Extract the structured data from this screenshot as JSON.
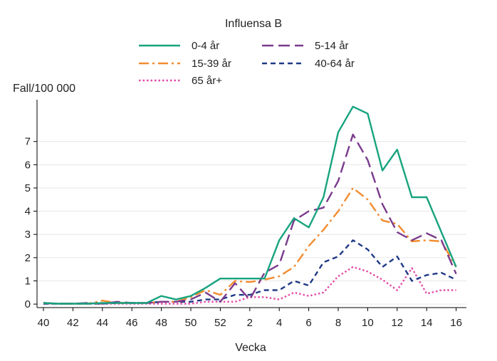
{
  "chart_data": {
    "type": "line",
    "title": "Influensa B",
    "ylabel": "Fall/100 000",
    "xlabel": "Vecka",
    "ylim": [
      -0.15,
      8.8
    ],
    "yticks": [
      0,
      1,
      2,
      3,
      4,
      5,
      6,
      7
    ],
    "xtick_labels": [
      "40",
      "42",
      "44",
      "46",
      "48",
      "50",
      "52",
      "2",
      "4",
      "6",
      "8",
      "10",
      "12",
      "14",
      "16"
    ],
    "x": [
      "40",
      "41",
      "42",
      "43",
      "44",
      "45",
      "46",
      "47",
      "48",
      "49",
      "50",
      "51",
      "52",
      "1",
      "2",
      "3",
      "4",
      "5",
      "6",
      "7",
      "8",
      "9",
      "10",
      "11",
      "12",
      "13",
      "14",
      "15",
      "16"
    ],
    "grid": true,
    "legend_position": "top",
    "series": [
      {
        "name": "0-4 år",
        "color": "#17a37e",
        "dash": "solid",
        "values": [
          0.05,
          0.02,
          0.02,
          0.02,
          0.05,
          0.05,
          0.05,
          0.05,
          0.35,
          0.2,
          0.35,
          0.7,
          1.1,
          1.1,
          1.1,
          1.1,
          2.75,
          3.7,
          3.3,
          4.6,
          7.4,
          8.5,
          8.2,
          5.75,
          6.65,
          4.6,
          4.6,
          3.1,
          1.6
        ]
      },
      {
        "name": "5-14 år",
        "color": "#7a3a8c",
        "dash": "longdash",
        "values": [
          0.05,
          0.02,
          0.02,
          0.05,
          0.02,
          0.1,
          0.05,
          0.05,
          0.1,
          0.1,
          0.2,
          0.5,
          0.1,
          0.9,
          0.2,
          1.35,
          1.7,
          3.6,
          4.0,
          4.15,
          5.3,
          7.3,
          6.2,
          4.3,
          3.1,
          2.75,
          3.05,
          2.75,
          1.3
        ]
      },
      {
        "name": "15-39 år",
        "color": "#f28c30",
        "dash": "dashdot",
        "values": [
          0.05,
          0.02,
          0.02,
          0.02,
          0.15,
          0.05,
          0.05,
          0.05,
          0.1,
          0.1,
          0.3,
          0.6,
          0.4,
          1.0,
          0.95,
          1.05,
          1.2,
          1.6,
          2.5,
          3.2,
          4.0,
          5.0,
          4.5,
          3.6,
          3.45,
          2.7,
          2.75,
          2.7,
          1.6
        ]
      },
      {
        "name": "40-64 år",
        "color": "#1f3a85",
        "dash": "dash",
        "values": [
          0.02,
          0.02,
          0.02,
          0.02,
          0.02,
          0.05,
          0.05,
          0.05,
          0.1,
          0.1,
          0.1,
          0.2,
          0.2,
          0.4,
          0.4,
          0.6,
          0.6,
          1.0,
          0.8,
          1.8,
          2.05,
          2.75,
          2.35,
          1.6,
          2.05,
          1.0,
          1.25,
          1.35,
          1.05
        ]
      },
      {
        "name": "65 år+",
        "color": "#e34aa8",
        "dash": "dot",
        "values": [
          0.02,
          0.02,
          0.02,
          0.02,
          0.02,
          0.02,
          0.02,
          0.02,
          0.02,
          0.02,
          0.02,
          0.1,
          0.1,
          0.1,
          0.3,
          0.3,
          0.2,
          0.5,
          0.35,
          0.5,
          1.2,
          1.6,
          1.4,
          1.05,
          0.6,
          1.55,
          0.45,
          0.6,
          0.6
        ]
      }
    ]
  }
}
